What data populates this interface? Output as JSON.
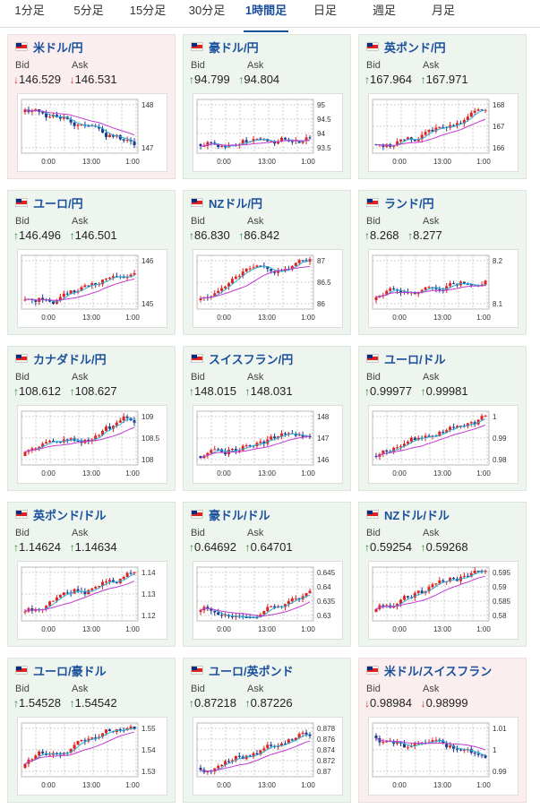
{
  "tabs": [
    "1分足",
    "5分足",
    "15分足",
    "30分足",
    "1時間足",
    "日足",
    "週足",
    "月足"
  ],
  "active_tab_index": 4,
  "bid_label": "Bid",
  "ask_label": "Ask",
  "time_labels": [
    "0:00",
    "13:00",
    "1:00"
  ],
  "colors": {
    "up": "#1f8a2f",
    "down": "#d33",
    "pair_text": "#1a4f9c",
    "up_bg": "#eef5ee",
    "down_bg": "#fbeeee"
  },
  "cards": [
    {
      "pair": "米ドル/円",
      "flag": "us-flag-icon",
      "dir": "down",
      "bid": "146.529",
      "ask": "146.531",
      "ticks": [
        "148",
        "147"
      ]
    },
    {
      "pair": "豪ドル/円",
      "flag": "au-flag-icon",
      "dir": "up",
      "bid": "94.799",
      "ask": "94.804",
      "ticks": [
        "95",
        "94.5",
        "94",
        "93.5"
      ]
    },
    {
      "pair": "英ポンド/円",
      "flag": "uk-flag-icon",
      "dir": "up",
      "bid": "167.964",
      "ask": "167.971",
      "ticks": [
        "168",
        "167",
        "166"
      ]
    },
    {
      "pair": "ユーロ/円",
      "flag": "eu-flag-icon",
      "dir": "up",
      "bid": "146.496",
      "ask": "146.501",
      "ticks": [
        "146",
        "145"
      ]
    },
    {
      "pair": "NZドル/円",
      "flag": "nz-flag-icon",
      "dir": "up",
      "bid": "86.830",
      "ask": "86.842",
      "ticks": [
        "87",
        "86.5",
        "86"
      ]
    },
    {
      "pair": "ランド/円",
      "flag": "za-flag-icon",
      "dir": "up",
      "bid": "8.268",
      "ask": "8.277",
      "ticks": [
        "8.2",
        "8.1"
      ]
    },
    {
      "pair": "カナダドル/円",
      "flag": "ca-flag-icon",
      "dir": "up",
      "bid": "108.612",
      "ask": "108.627",
      "ticks": [
        "109",
        "108.5",
        "108"
      ]
    },
    {
      "pair": "スイスフラン/円",
      "flag": "ch-flag-icon",
      "dir": "up",
      "bid": "148.015",
      "ask": "148.031",
      "ticks": [
        "148",
        "147",
        "146"
      ]
    },
    {
      "pair": "ユーロ/ドル",
      "flag": "eu-us-flag-icon",
      "dir": "up",
      "bid": "0.99977",
      "ask": "0.99981",
      "ticks": [
        "1",
        "0.99",
        "0.98"
      ]
    },
    {
      "pair": "英ポンド/ドル",
      "flag": "uk-us-flag-icon",
      "dir": "up",
      "bid": "1.14624",
      "ask": "1.14634",
      "ticks": [
        "1.14",
        "1.13",
        "1.12"
      ]
    },
    {
      "pair": "豪ドル/ドル",
      "flag": "au-us-flag-icon",
      "dir": "up",
      "bid": "0.64692",
      "ask": "0.64701",
      "ticks": [
        "0.645",
        "0.64",
        "0.635",
        "0.63"
      ]
    },
    {
      "pair": "NZドル/ドル",
      "flag": "nz-us-flag-icon",
      "dir": "up",
      "bid": "0.59254",
      "ask": "0.59268",
      "ticks": [
        "0.595",
        "0.59",
        "0.585",
        "0.58"
      ]
    },
    {
      "pair": "ユーロ/豪ドル",
      "flag": "eu-au-flag-icon",
      "dir": "up",
      "bid": "1.54528",
      "ask": "1.54542",
      "ticks": [
        "1.55",
        "1.54",
        "1.53"
      ]
    },
    {
      "pair": "ユーロ/英ポンド",
      "flag": "eu-uk-flag-icon",
      "dir": "up",
      "bid": "0.87218",
      "ask": "0.87226",
      "ticks": [
        "0.878",
        "0.876",
        "0.874",
        "0.872",
        "0.87"
      ]
    },
    {
      "pair": "米ドル/スイスフラン",
      "flag": "us-ch-flag-icon",
      "dir": "down",
      "bid": "0.98984",
      "ask": "0.98999",
      "ticks": [
        "1.01",
        "1",
        "0.99"
      ]
    }
  ]
}
